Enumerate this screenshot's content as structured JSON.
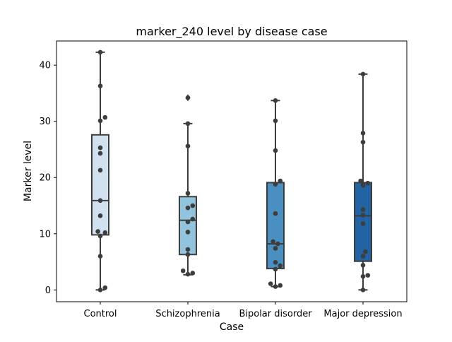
{
  "chart_data": {
    "type": "box",
    "title": "marker_240 level by disease case",
    "xlabel": "Case",
    "ylabel": "Marker level",
    "ylim": [
      -2.1,
      44.3
    ],
    "yticks": [
      0,
      10,
      20,
      30,
      40
    ],
    "grid": false,
    "categories": [
      "Control",
      "Schizophrenia",
      "Bipolar disorder",
      "Major depression"
    ],
    "colors": [
      "#d2e1f0",
      "#93c4de",
      "#4a8fc1",
      "#2263a4"
    ],
    "boxes": [
      {
        "category": "Control",
        "whisker_low": 0.0,
        "q1": 9.8,
        "median": 15.9,
        "q3": 27.6,
        "whisker_high": 42.3,
        "outliers": []
      },
      {
        "category": "Schizophrenia",
        "whisker_low": 2.7,
        "q1": 6.3,
        "median": 12.4,
        "q3": 16.6,
        "whisker_high": 29.6,
        "outliers": [
          34.2
        ]
      },
      {
        "category": "Bipolar disorder",
        "whisker_low": 0.6,
        "q1": 3.8,
        "median": 8.2,
        "q3": 19.1,
        "whisker_high": 33.7,
        "outliers": []
      },
      {
        "category": "Major depression",
        "whisker_low": 0.0,
        "q1": 5.1,
        "median": 13.2,
        "q3": 19.1,
        "whisker_high": 38.4,
        "outliers": []
      }
    ],
    "points": [
      [
        42.3,
        36.3,
        30.7,
        30.1,
        25.3,
        24.3,
        21.3,
        15.9,
        13.2,
        10.4,
        10.2,
        9.6,
        6.0,
        0.4,
        0.0
      ],
      [
        34.2,
        29.6,
        25.6,
        17.2,
        15.0,
        14.6,
        12.6,
        12.1,
        10.3,
        7.2,
        6.3,
        3.4,
        3.0,
        2.8
      ],
      [
        33.7,
        30.1,
        24.8,
        19.4,
        18.8,
        13.6,
        8.6,
        8.2,
        7.4,
        4.9,
        4.3,
        3.7,
        1.1,
        0.8,
        0.6
      ],
      [
        38.4,
        27.9,
        26.3,
        19.4,
        19.0,
        18.6,
        14.3,
        13.3,
        11.8,
        6.8,
        6.0,
        4.4,
        2.6,
        2.4,
        0.0
      ]
    ],
    "point_color": "#3d3d3d"
  }
}
